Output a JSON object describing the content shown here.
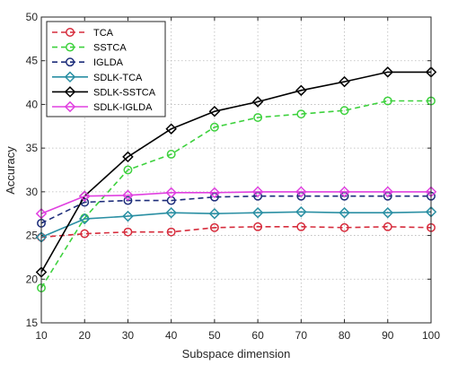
{
  "chart_data": {
    "type": "line",
    "xlabel": "Subspace dimension",
    "ylabel": "Accuracy",
    "x": [
      10,
      20,
      30,
      40,
      50,
      60,
      70,
      80,
      90,
      100
    ],
    "xlim": [
      10,
      100
    ],
    "ylim": [
      15,
      50
    ],
    "xticks": [
      "10",
      "20",
      "30",
      "40",
      "50",
      "60",
      "70",
      "80",
      "90",
      "100"
    ],
    "yticks": [
      "15",
      "20",
      "25",
      "30",
      "35",
      "40",
      "45",
      "50"
    ],
    "grid": "dotted",
    "legend_position": "top-left",
    "series": [
      {
        "name": "TCA",
        "color": "#d62c3c",
        "dash": "dashed",
        "marker": "circle",
        "values": [
          24.8,
          25.2,
          25.4,
          25.4,
          25.9,
          26.0,
          26.0,
          25.9,
          26.0,
          25.9
        ]
      },
      {
        "name": "SSTCA",
        "color": "#3dd13d",
        "dash": "dashed",
        "marker": "circle",
        "values": [
          19.0,
          27.0,
          32.5,
          34.3,
          37.4,
          38.5,
          38.9,
          39.3,
          40.4,
          40.4
        ]
      },
      {
        "name": "IGLDA",
        "color": "#1d2d7a",
        "dash": "dashed",
        "marker": "circle",
        "values": [
          26.4,
          28.8,
          29.0,
          29.0,
          29.4,
          29.5,
          29.5,
          29.5,
          29.5,
          29.5
        ]
      },
      {
        "name": "SDLK-TCA",
        "color": "#2a8fa3",
        "dash": "solid",
        "marker": "diamond",
        "values": [
          24.8,
          26.9,
          27.2,
          27.6,
          27.5,
          27.6,
          27.7,
          27.6,
          27.6,
          27.7
        ]
      },
      {
        "name": "SDLK-SSTCA",
        "color": "#000000",
        "dash": "solid",
        "marker": "diamond",
        "values": [
          20.8,
          29.5,
          34.0,
          37.2,
          39.2,
          40.3,
          41.6,
          42.6,
          43.7,
          43.7
        ]
      },
      {
        "name": "SDLK-IGLDA",
        "color": "#e040e0",
        "dash": "solid",
        "marker": "diamond",
        "values": [
          27.5,
          29.5,
          29.6,
          29.9,
          29.9,
          30.0,
          30.0,
          30.0,
          30.0,
          30.0
        ]
      }
    ]
  }
}
